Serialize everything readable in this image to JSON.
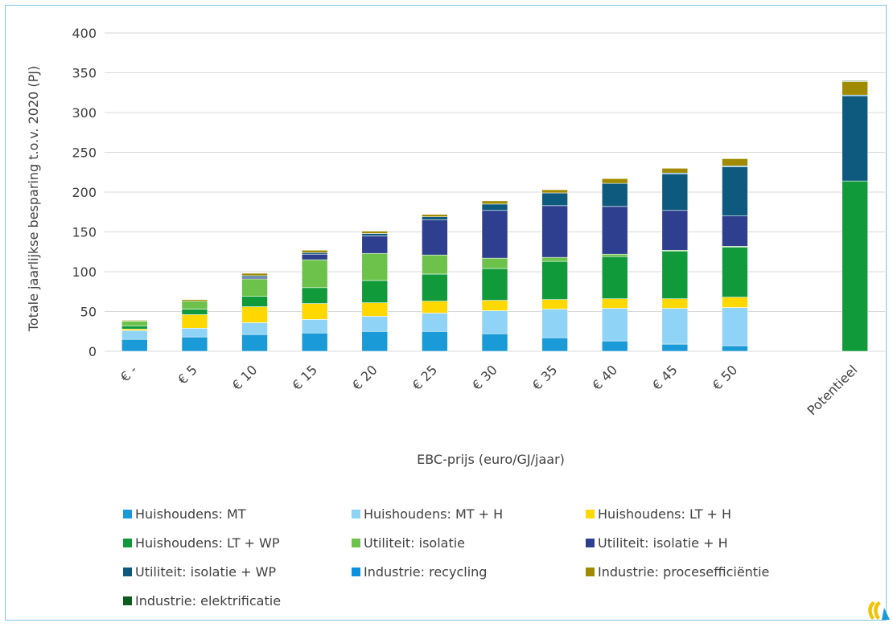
{
  "colors": {
    "frame_border": "#7fc4e6",
    "grid": "#d9d9d9",
    "text": "#404040"
  },
  "legend_items": [
    {
      "label": "Huishoudens: MT",
      "color": "#1a9ad6"
    },
    {
      "label": "Huishoudens: MT + H",
      "color": "#8fd3f7"
    },
    {
      "label": "Huishoudens: LT + H",
      "color": "#ffd800"
    },
    {
      "label": "Huishoudens: LT + WP",
      "color": "#119a3a"
    },
    {
      "label": "Utiliteit: isolatie",
      "color": "#6cc24a"
    },
    {
      "label": "Utiliteit: isolatie + H",
      "color": "#2e3f8f"
    },
    {
      "label": "Utiliteit: isolatie + WP",
      "color": "#0e5a7e"
    },
    {
      "label": "Industrie: recycling",
      "color": "#0b8fe0"
    },
    {
      "label": "Industrie: procesefficiëntie",
      "color": "#a08a00"
    },
    {
      "label": "Industrie: elektrificatie",
      "color": "#0d5c1f"
    }
  ],
  "chart_data": {
    "type": "bar",
    "stacked": true,
    "xlabel": "EBC-prijs (euro/GJ/jaar)",
    "ylabel": "Totale jaarlijkse besparing t.o.v. 2020 (PJ)",
    "ylim": [
      0,
      400
    ],
    "yticks": [
      "0",
      "50",
      "100",
      "150",
      "200",
      "250",
      "300",
      "350",
      "400"
    ],
    "grid": true,
    "legend_position": "bottom",
    "categories": [
      "€ -",
      "€ 5",
      "€ 10",
      "€ 15",
      "€ 20",
      "€ 25",
      "€ 30",
      "€ 35",
      "€ 40",
      "€ 45",
      "€ 50",
      "",
      "Potentieel"
    ],
    "series": [
      {
        "name": "Huishoudens: MT",
        "values": [
          15,
          18,
          21,
          23,
          25,
          25,
          22,
          17,
          13,
          9,
          7,
          0,
          0
        ]
      },
      {
        "name": "Huishoudens: MT + H",
        "values": [
          11,
          11,
          15,
          17,
          19,
          23,
          29,
          36,
          41,
          45,
          48,
          0,
          0
        ]
      },
      {
        "name": "Huishoudens: LT + H",
        "values": [
          2,
          17,
          20,
          20,
          17,
          15,
          13,
          12,
          12,
          12,
          13,
          0,
          0
        ]
      },
      {
        "name": "Huishoudens: LT + WP",
        "values": [
          4,
          7,
          13,
          20,
          28,
          34,
          40,
          48,
          53,
          60,
          63,
          0,
          214
        ]
      },
      {
        "name": "Utiliteit: isolatie",
        "values": [
          6,
          10,
          22,
          35,
          34,
          24,
          13,
          5,
          3,
          1,
          1,
          0,
          0
        ]
      },
      {
        "name": "Utiliteit: isolatie + H",
        "values": [
          0,
          0,
          2,
          7,
          22,
          44,
          60,
          65,
          60,
          50,
          38,
          0,
          0
        ]
      },
      {
        "name": "Utiliteit: isolatie + WP",
        "values": [
          0,
          0,
          2,
          2,
          3,
          4,
          8,
          16,
          29,
          46,
          62,
          0,
          107
        ]
      },
      {
        "name": "Industrie: recycling",
        "values": [
          0,
          0,
          0,
          0,
          0,
          0,
          0,
          0,
          0,
          1,
          1,
          0,
          1
        ]
      },
      {
        "name": "Industrie: procesefficiëntie",
        "values": [
          1,
          2,
          3,
          3,
          3,
          3,
          4,
          4,
          6,
          6,
          9,
          0,
          17
        ]
      },
      {
        "name": "Industrie: elektrificatie",
        "values": [
          0,
          0,
          0,
          0,
          0,
          0,
          0,
          0,
          0,
          0,
          0,
          0,
          1
        ]
      }
    ]
  }
}
